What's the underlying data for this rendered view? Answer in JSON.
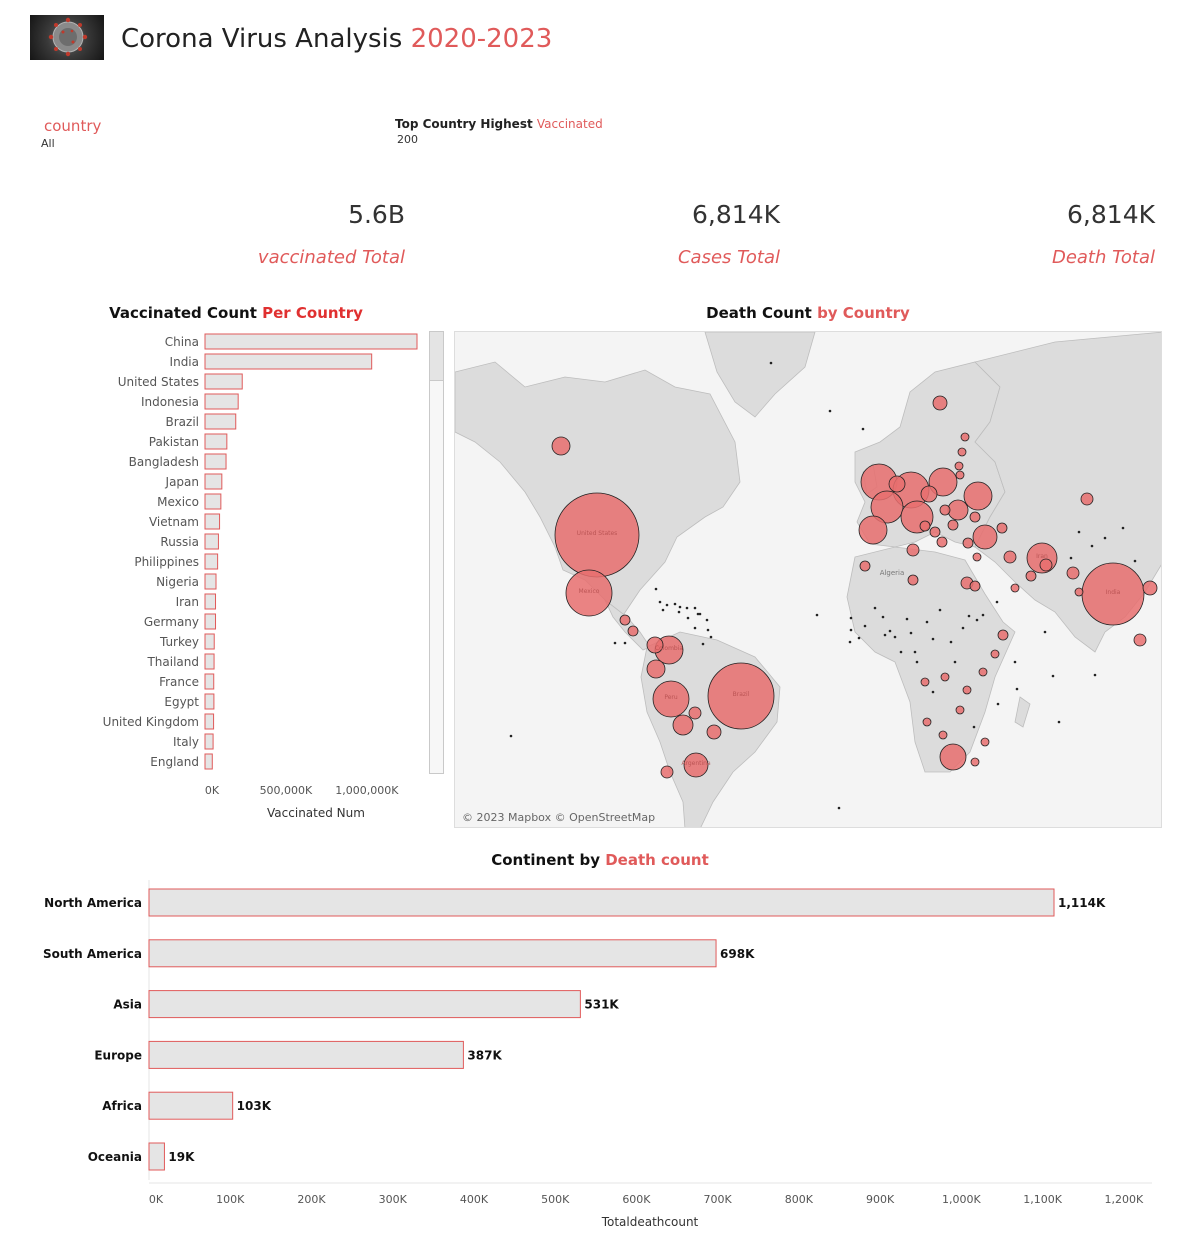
{
  "header": {
    "title_main": "Corona Virus Analysis ",
    "title_years": "2020-2023"
  },
  "filters": {
    "country_label": "country",
    "country_value": "All",
    "top_label_main": "Top Country Highest ",
    "top_label_accent": "Vaccinated",
    "top_value": "200"
  },
  "kpis": [
    {
      "value": "5.6B",
      "label": "vaccinated Total"
    },
    {
      "value": "6,814K",
      "label": "Cases Total"
    },
    {
      "value": "6,814K",
      "label": "Death Total"
    }
  ],
  "colors": {
    "accent": "#e05a5a",
    "bar_fill": "#e5e5e5",
    "bar_stroke": "#e05a5a",
    "bubble_fill": "#e76f6f",
    "map_land": "#dcdcdc",
    "map_water": "#f4f4f4"
  },
  "vacc_chart": {
    "title_main": "Vaccinated Count ",
    "title_accent": "Per Country",
    "xlabel": "Vaccinated Num"
  },
  "map": {
    "title_main": "Death Count ",
    "title_accent": "by Country",
    "attribution": "© 2023 Mapbox © OpenStreetMap",
    "bubble_labels": [
      "United States",
      "Mexico",
      "Brazil",
      "India",
      "Peru",
      "Colombia",
      "Argentina",
      "Iran",
      "Algeria"
    ]
  },
  "continent_chart": {
    "title_main": "Continent by ",
    "title_accent": "Death count",
    "xlabel": "Totaldeathcount"
  },
  "chart_data": [
    {
      "type": "bar",
      "orientation": "horizontal",
      "title": "Vaccinated Count Per Country",
      "xlabel": "Vaccinated Num",
      "ylabel": "",
      "xlim": [
        0,
        1450000
      ],
      "x_ticks": [
        0,
        500000,
        1000000
      ],
      "x_tick_labels": [
        "0K",
        "500,000K",
        "1,000,000K"
      ],
      "categories": [
        "China",
        "India",
        "United States",
        "Indonesia",
        "Brazil",
        "Pakistan",
        "Bangladesh",
        "Japan",
        "Mexico",
        "Vietnam",
        "Russia",
        "Philippines",
        "Nigeria",
        "Iran",
        "Germany",
        "Turkey",
        "Thailand",
        "France",
        "Egypt",
        "United Kingdom",
        "Italy",
        "England"
      ],
      "values": [
        1310000,
        1030000,
        230000,
        205000,
        190000,
        135000,
        130000,
        104000,
        98000,
        90000,
        83000,
        78000,
        68000,
        65000,
        65000,
        57000,
        56000,
        54000,
        55000,
        53000,
        50000,
        45000
      ]
    },
    {
      "type": "bar",
      "orientation": "horizontal",
      "title": "Continent by Death count",
      "xlabel": "Totaldeathcount",
      "ylabel": "",
      "xlim": [
        0,
        1250000
      ],
      "x_ticks": [
        0,
        100000,
        200000,
        300000,
        400000,
        500000,
        600000,
        700000,
        800000,
        900000,
        1000000,
        1100000,
        1200000
      ],
      "x_tick_labels": [
        "0K",
        "100K",
        "200K",
        "300K",
        "400K",
        "500K",
        "600K",
        "700K",
        "800K",
        "900K",
        "1,000K",
        "1,100K",
        "1,200K"
      ],
      "categories": [
        "North America",
        "South America",
        "Asia",
        "Europe",
        "Africa",
        "Oceania"
      ],
      "values": [
        1114000,
        698000,
        531000,
        387000,
        103000,
        19000
      ],
      "data_labels": [
        "1,114K",
        "698K",
        "531K",
        "387K",
        "103K",
        "19K"
      ]
    }
  ]
}
